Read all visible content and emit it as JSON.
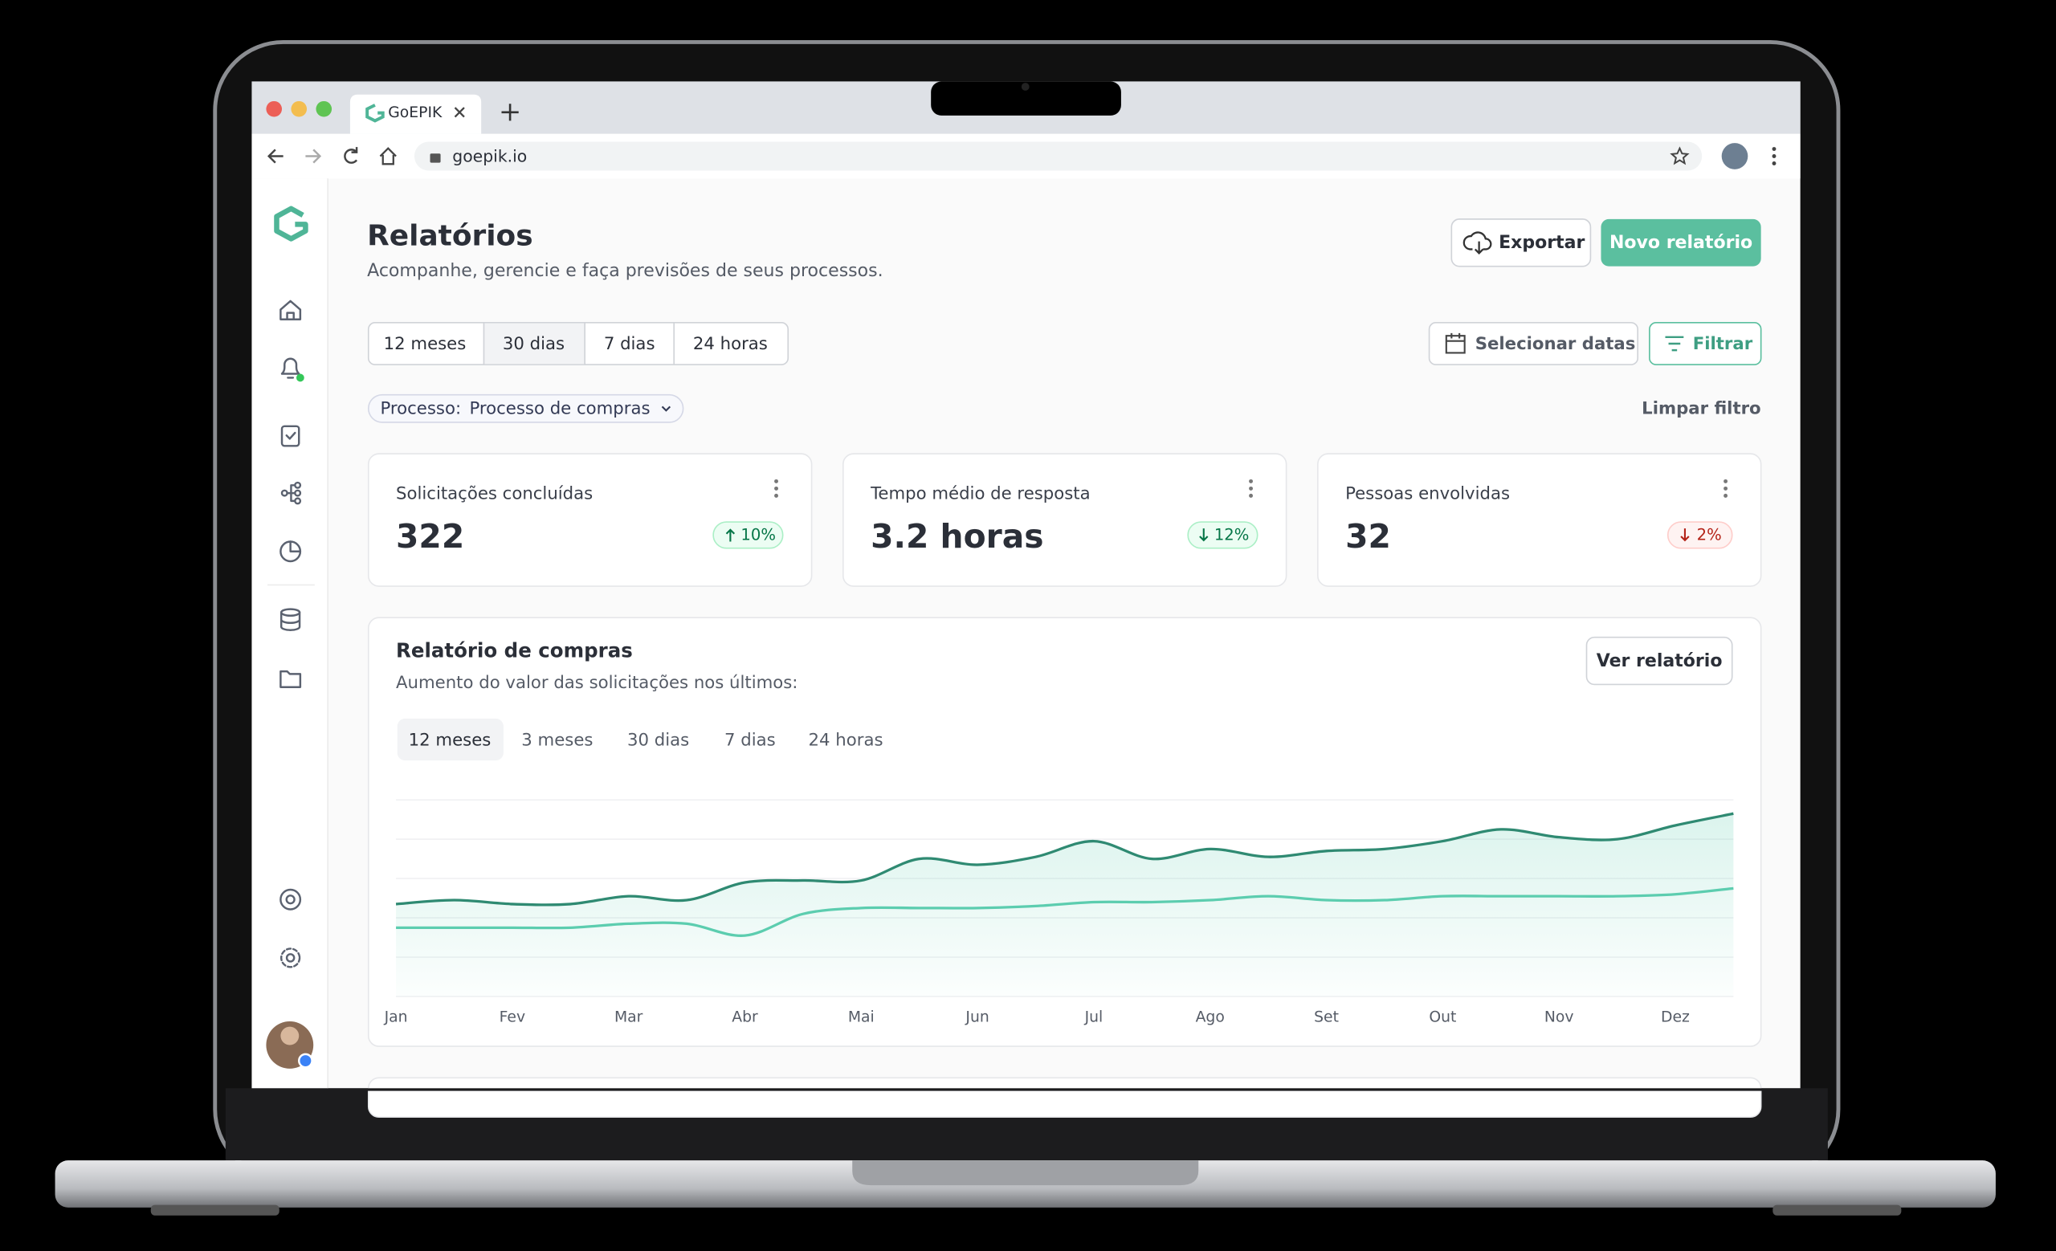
{
  "browser": {
    "tab_title": "GoEPIK",
    "url": "goepik.io"
  },
  "header": {
    "title": "Relatórios",
    "subtitle": "Acompanhe, gerencie e faça previsões de seus processos."
  },
  "buttons": {
    "export": "Exportar",
    "new_report": "Novo relatório",
    "select_dates": "Selecionar datas",
    "filter": "Filtrar",
    "clear_filter": "Limpar filtro"
  },
  "period_tabs": [
    "12 meses",
    "30 dias",
    "7 dias",
    "24 horas"
  ],
  "filter_chip": {
    "label": "Processo:",
    "value": "Processo de compras"
  },
  "stats": [
    {
      "label": "Solicitações concluídas",
      "value": "322",
      "change": "10%"
    },
    {
      "label": "Tempo médio de resposta",
      "value": "3.2 horas",
      "change": "12%"
    },
    {
      "label": "Pessoas envolvidas",
      "value": "32",
      "change": "2%"
    }
  ],
  "report": {
    "button": "Ver relatório",
    "tabs": [
      "12 meses",
      "3 meses",
      "30 dias",
      "7 dias",
      "24 horas"
    ]
  },
  "chart_data": {
    "type": "line",
    "title": "Relatório de compras",
    "subtitle": "Aumento do valor das solicitações nos últimos:",
    "categories": [
      "Jan",
      null,
      "Fev",
      null,
      "Mar",
      null,
      "Abr",
      null,
      "Mai",
      null,
      "Jun",
      null,
      "Jul",
      null,
      "Ago",
      null,
      "Set",
      null,
      "Out",
      null,
      "Nov",
      null,
      "Dez",
      null
    ],
    "series": [
      {
        "color": "#2f8a72",
        "values": [
          47,
          49,
          47,
          47,
          51,
          49,
          58,
          59,
          59,
          70,
          67,
          71,
          79,
          70,
          75,
          71,
          74,
          75,
          79,
          85,
          81,
          80,
          87,
          93
        ]
      },
      {
        "color": "#5ccdaf",
        "values": [
          35,
          35,
          35,
          35,
          37,
          37,
          31,
          42,
          45,
          45,
          45,
          46,
          48,
          48,
          49,
          51,
          49,
          49,
          51,
          51,
          51,
          51,
          52,
          55
        ]
      }
    ],
    "ylim": [
      0,
      100
    ],
    "yticks": [
      0,
      20,
      40,
      60,
      80,
      100
    ],
    "grid": true
  }
}
